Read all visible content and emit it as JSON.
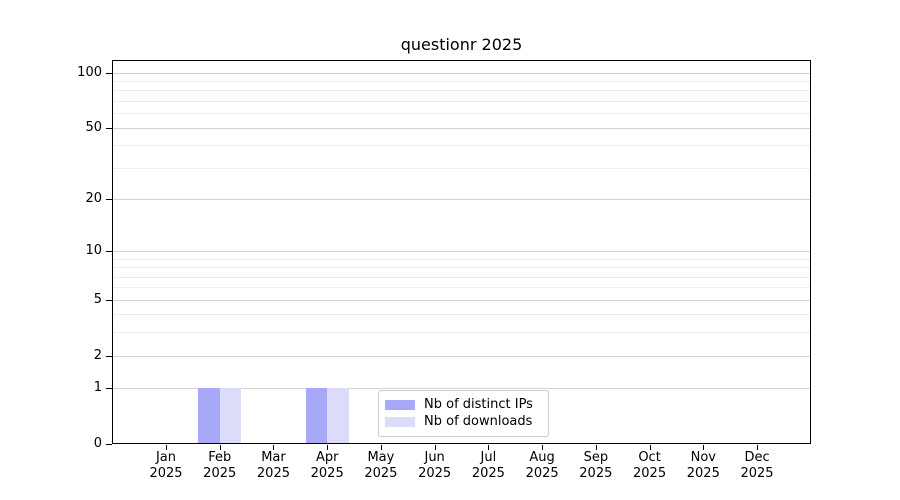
{
  "figure": {
    "background": "#ffffff"
  },
  "chart_data": {
    "type": "bar",
    "title": "questionr 2025",
    "x_categories": [
      "Jan",
      "Feb",
      "Mar",
      "Apr",
      "May",
      "Jun",
      "Jul",
      "Aug",
      "Sep",
      "Oct",
      "Nov",
      "Dec"
    ],
    "x_year": "2025",
    "series": [
      {
        "name": "Nb of distinct IPs",
        "color": "#a8a8f8",
        "values": [
          0,
          1,
          0,
          1,
          0,
          0,
          0,
          0,
          0,
          0,
          0,
          0
        ]
      },
      {
        "name": "Nb of downloads",
        "color": "#dcdcf8",
        "values": [
          0,
          1,
          0,
          1,
          0,
          0,
          0,
          0,
          0,
          0,
          0,
          0
        ]
      }
    ],
    "y_scale": "log1p",
    "ylim": [
      0,
      117
    ],
    "y_major_ticks": [
      0,
      1,
      2,
      5,
      10,
      20,
      50,
      100
    ],
    "y_minor_gridlines": [
      3,
      4,
      6,
      7,
      8,
      9,
      30,
      40,
      60,
      70,
      80,
      90
    ],
    "grid": "horizontal",
    "legend": {
      "position": "lower center",
      "entries": [
        "Nb of distinct IPs",
        "Nb of downloads"
      ]
    }
  },
  "colors": {
    "spine": "#000000",
    "grid_major": "#d2d2d2",
    "grid_minor": "#ececec",
    "legend_border": "#cccccc",
    "text": "#000000"
  }
}
